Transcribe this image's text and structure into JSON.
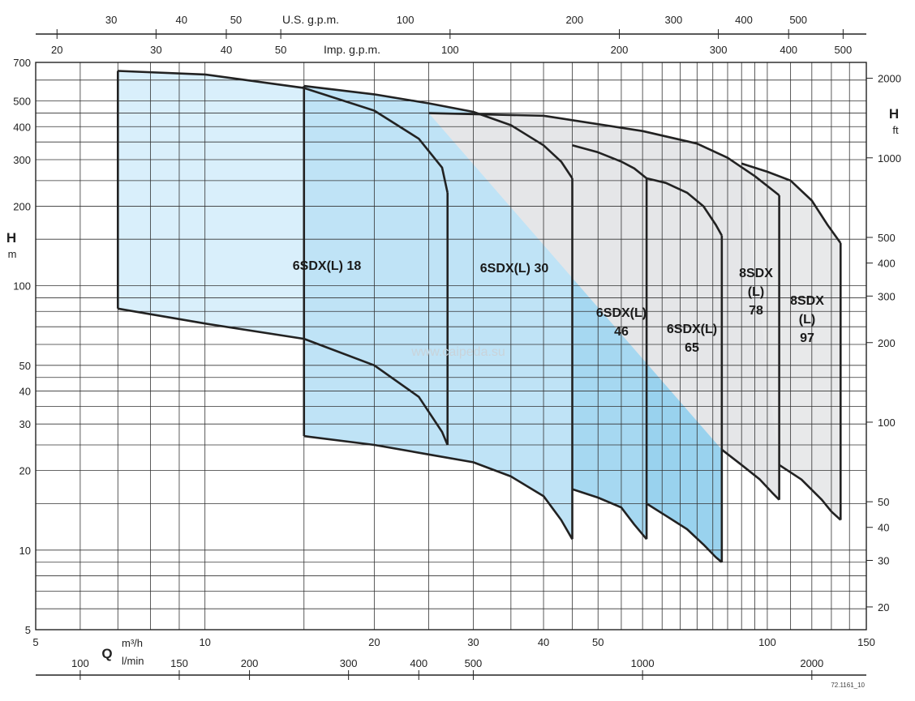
{
  "chart_data": {
    "type": "area",
    "title": "",
    "x_scale": "log",
    "y_scale": "log",
    "xlim": [
      5,
      150
    ],
    "ylim": [
      5,
      700
    ],
    "x_axis_bottom": {
      "label": "Q",
      "units": [
        "m³/h",
        "l/min"
      ],
      "ticks": [
        "5",
        "10",
        "20",
        "30",
        "40",
        "50",
        "100",
        "150"
      ]
    },
    "x_axis_lmin": {
      "ticks": [
        "100",
        "150",
        "200",
        "300",
        "400",
        "500",
        "1000",
        "2000"
      ]
    },
    "x_axis_usgpm": {
      "label": "U.S. g.p.m.",
      "ticks": [
        "30",
        "40",
        "50",
        "100",
        "200",
        "300",
        "400",
        "500"
      ]
    },
    "x_axis_impgpm": {
      "label": "Imp. g.p.m.",
      "ticks": [
        "20",
        "30",
        "40",
        "50",
        "100",
        "200",
        "300",
        "400",
        "500"
      ]
    },
    "y_axis_left": {
      "label": "H",
      "unit": "m",
      "ticks": [
        "5",
        "10",
        "20",
        "30",
        "40",
        "50",
        "100",
        "200",
        "300",
        "400",
        "500",
        "700"
      ]
    },
    "y_axis_right": {
      "label": "H",
      "unit": "ft",
      "ticks": [
        "20",
        "30",
        "40",
        "50",
        "100",
        "200",
        "300",
        "400",
        "500",
        "1000",
        "2000"
      ]
    },
    "series": [
      {
        "label_lines": [
          "6SDX(L) 18"
        ],
        "color": "#d9effb",
        "q_min": 7,
        "q_max": 27,
        "top": [
          [
            7,
            650
          ],
          [
            10,
            630
          ],
          [
            15,
            560
          ],
          [
            20,
            460
          ],
          [
            24,
            360
          ],
          [
            26.4,
            280
          ],
          [
            27,
            225
          ]
        ],
        "bottom": [
          [
            7,
            82
          ],
          [
            10,
            72
          ],
          [
            15,
            63
          ],
          [
            20,
            50
          ],
          [
            24,
            38
          ],
          [
            26.4,
            28
          ],
          [
            27,
            25
          ]
        ]
      },
      {
        "label_lines": [
          "6SDX(L) 30"
        ],
        "color": "#bfe3f6",
        "q_min": 15,
        "q_max": 45,
        "top": [
          [
            15,
            570
          ],
          [
            20,
            530
          ],
          [
            25,
            490
          ],
          [
            30,
            455
          ],
          [
            35,
            405
          ],
          [
            40,
            340
          ],
          [
            43,
            295
          ],
          [
            45,
            255
          ]
        ],
        "bottom": [
          [
            15,
            27
          ],
          [
            20,
            25
          ],
          [
            25,
            23
          ],
          [
            30,
            21.5
          ],
          [
            35,
            19
          ],
          [
            40,
            16
          ],
          [
            43,
            13
          ],
          [
            45,
            11
          ]
        ]
      },
      {
        "label_lines": [
          "6SDX(L)",
          "46"
        ],
        "color": "#a6d8f1",
        "q_min": 45,
        "q_max": 61,
        "top": [
          [
            45,
            340
          ],
          [
            50,
            320
          ],
          [
            55,
            295
          ],
          [
            58,
            278
          ],
          [
            61,
            255
          ]
        ],
        "bottom": [
          [
            45,
            17
          ],
          [
            50,
            15.8
          ],
          [
            55,
            14.5
          ],
          [
            58,
            12.5
          ],
          [
            61,
            11
          ]
        ]
      },
      {
        "label_lines": [
          "6SDX(L)",
          "65"
        ],
        "color": "#99d2ee",
        "q_min": 61,
        "q_max": 83,
        "top": [
          [
            61,
            255
          ],
          [
            66,
            245
          ],
          [
            72,
            225
          ],
          [
            77,
            200
          ],
          [
            81,
            170
          ],
          [
            83,
            155
          ]
        ],
        "bottom": [
          [
            61,
            15
          ],
          [
            66,
            13.5
          ],
          [
            72,
            12
          ],
          [
            77,
            10.5
          ],
          [
            81,
            9.4
          ],
          [
            83,
            9
          ]
        ]
      },
      {
        "label_lines": [
          "8SDX",
          "(L)",
          "78"
        ],
        "color": "#e5e6e8",
        "q_min": 83,
        "q_max": 105,
        "top": [
          [
            25,
            450
          ],
          [
            40,
            440
          ],
          [
            60,
            385
          ],
          [
            75,
            345
          ],
          [
            85,
            305
          ],
          [
            95,
            260
          ],
          [
            105,
            220
          ]
        ],
        "bottom": [
          [
            83,
            24
          ],
          [
            90,
            21
          ],
          [
            97,
            18.5
          ],
          [
            102,
            16.5
          ],
          [
            105,
            15.5
          ]
        ]
      },
      {
        "label_lines": [
          "8SDX",
          "(L)",
          "97"
        ],
        "color": "#e8e9ea",
        "q_min": 105,
        "q_max": 135,
        "top": [
          [
            90,
            290
          ],
          [
            100,
            270
          ],
          [
            110,
            250
          ],
          [
            120,
            210
          ],
          [
            128,
            170
          ],
          [
            135,
            145
          ]
        ],
        "bottom": [
          [
            105,
            21
          ],
          [
            115,
            18.5
          ],
          [
            125,
            15.5
          ],
          [
            130,
            14
          ],
          [
            135,
            13
          ]
        ]
      }
    ],
    "annotations": [
      "www.caipeda.su",
      "72.1161_10"
    ],
    "grid": true,
    "legend": "none"
  }
}
